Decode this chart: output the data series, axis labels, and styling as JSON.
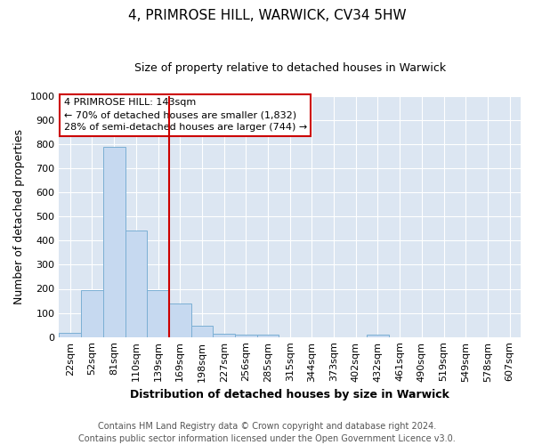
{
  "title": "4, PRIMROSE HILL, WARWICK, CV34 5HW",
  "subtitle": "Size of property relative to detached houses in Warwick",
  "xlabel": "Distribution of detached houses by size in Warwick",
  "ylabel": "Number of detached properties",
  "categories": [
    "22sqm",
    "52sqm",
    "81sqm",
    "110sqm",
    "139sqm",
    "169sqm",
    "198sqm",
    "227sqm",
    "256sqm",
    "285sqm",
    "315sqm",
    "344sqm",
    "373sqm",
    "402sqm",
    "432sqm",
    "461sqm",
    "490sqm",
    "519sqm",
    "549sqm",
    "578sqm",
    "607sqm"
  ],
  "values": [
    18,
    195,
    790,
    440,
    195,
    140,
    48,
    15,
    10,
    10,
    0,
    0,
    0,
    0,
    10,
    0,
    0,
    0,
    0,
    0,
    0
  ],
  "bar_color": "#c6d9f0",
  "bar_edge_color": "#7bafd4",
  "vline_color": "#cc0000",
  "vline_pos": 4.5,
  "annotation_text": "4 PRIMROSE HILL: 143sqm\n← 70% of detached houses are smaller (1,832)\n28% of semi-detached houses are larger (744) →",
  "annotation_box_facecolor": "#ffffff",
  "annotation_box_edgecolor": "#cc0000",
  "footer": "Contains HM Land Registry data © Crown copyright and database right 2024.\nContains public sector information licensed under the Open Government Licence v3.0.",
  "ylim": [
    0,
    1000
  ],
  "yticks": [
    0,
    100,
    200,
    300,
    400,
    500,
    600,
    700,
    800,
    900,
    1000
  ],
  "fig_bg_color": "#ffffff",
  "plot_bg_color": "#dce6f2",
  "grid_color": "#ffffff",
  "title_fontsize": 11,
  "subtitle_fontsize": 9,
  "ylabel_fontsize": 9,
  "xlabel_fontsize": 9,
  "tick_fontsize": 8,
  "footer_fontsize": 7
}
